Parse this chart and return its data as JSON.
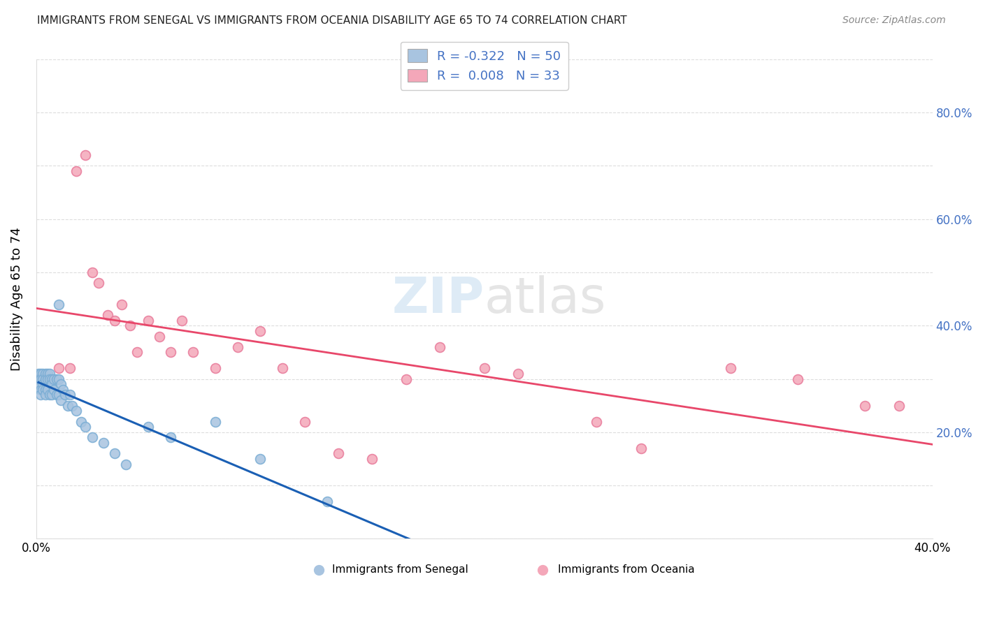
{
  "title": "IMMIGRANTS FROM SENEGAL VS IMMIGRANTS FROM OCEANIA DISABILITY AGE 65 TO 74 CORRELATION CHART",
  "source": "Source: ZipAtlas.com",
  "ylabel": "Disability Age 65 to 74",
  "xlim": [
    0.0,
    0.4
  ],
  "ylim": [
    0.0,
    0.9
  ],
  "senegal_color": "#a8c4e0",
  "senegal_edge_color": "#7aadd4",
  "oceania_color": "#f4a7b9",
  "oceania_edge_color": "#e87a9a",
  "senegal_line_color": "#1a5fb4",
  "oceania_line_color": "#e8476a",
  "grid_color": "#dddddd",
  "watermark_color": "#c8dff0",
  "senegal_x": [
    0.001,
    0.001,
    0.001,
    0.002,
    0.002,
    0.002,
    0.002,
    0.003,
    0.003,
    0.003,
    0.003,
    0.004,
    0.004,
    0.004,
    0.004,
    0.005,
    0.005,
    0.005,
    0.006,
    0.006,
    0.006,
    0.007,
    0.007,
    0.007,
    0.008,
    0.008,
    0.009,
    0.009,
    0.01,
    0.01,
    0.01,
    0.011,
    0.011,
    0.012,
    0.013,
    0.014,
    0.015,
    0.016,
    0.018,
    0.02,
    0.022,
    0.025,
    0.03,
    0.035,
    0.04,
    0.05,
    0.06,
    0.08,
    0.1,
    0.13
  ],
  "senegal_y": [
    0.31,
    0.3,
    0.29,
    0.31,
    0.3,
    0.28,
    0.27,
    0.31,
    0.3,
    0.29,
    0.28,
    0.31,
    0.3,
    0.28,
    0.27,
    0.31,
    0.3,
    0.28,
    0.31,
    0.3,
    0.27,
    0.3,
    0.29,
    0.27,
    0.3,
    0.28,
    0.3,
    0.27,
    0.44,
    0.3,
    0.27,
    0.29,
    0.26,
    0.28,
    0.27,
    0.25,
    0.27,
    0.25,
    0.24,
    0.22,
    0.21,
    0.19,
    0.18,
    0.16,
    0.14,
    0.21,
    0.19,
    0.22,
    0.15,
    0.07
  ],
  "oceania_x": [
    0.01,
    0.015,
    0.018,
    0.022,
    0.025,
    0.028,
    0.032,
    0.035,
    0.038,
    0.042,
    0.045,
    0.05,
    0.055,
    0.06,
    0.065,
    0.07,
    0.08,
    0.09,
    0.1,
    0.11,
    0.12,
    0.135,
    0.15,
    0.165,
    0.18,
    0.2,
    0.215,
    0.25,
    0.27,
    0.31,
    0.34,
    0.37,
    0.385
  ],
  "oceania_y": [
    0.32,
    0.32,
    0.69,
    0.72,
    0.5,
    0.48,
    0.42,
    0.41,
    0.44,
    0.4,
    0.35,
    0.41,
    0.38,
    0.35,
    0.41,
    0.35,
    0.32,
    0.36,
    0.39,
    0.32,
    0.22,
    0.16,
    0.15,
    0.3,
    0.36,
    0.32,
    0.31,
    0.22,
    0.17,
    0.32,
    0.3,
    0.25,
    0.25
  ],
  "senegal_line_x_start": 0.001,
  "senegal_line_x_solid_end": 0.175,
  "senegal_line_x_dash_end": 0.4,
  "oceania_line_x_start": 0.0,
  "oceania_line_x_end": 0.4
}
